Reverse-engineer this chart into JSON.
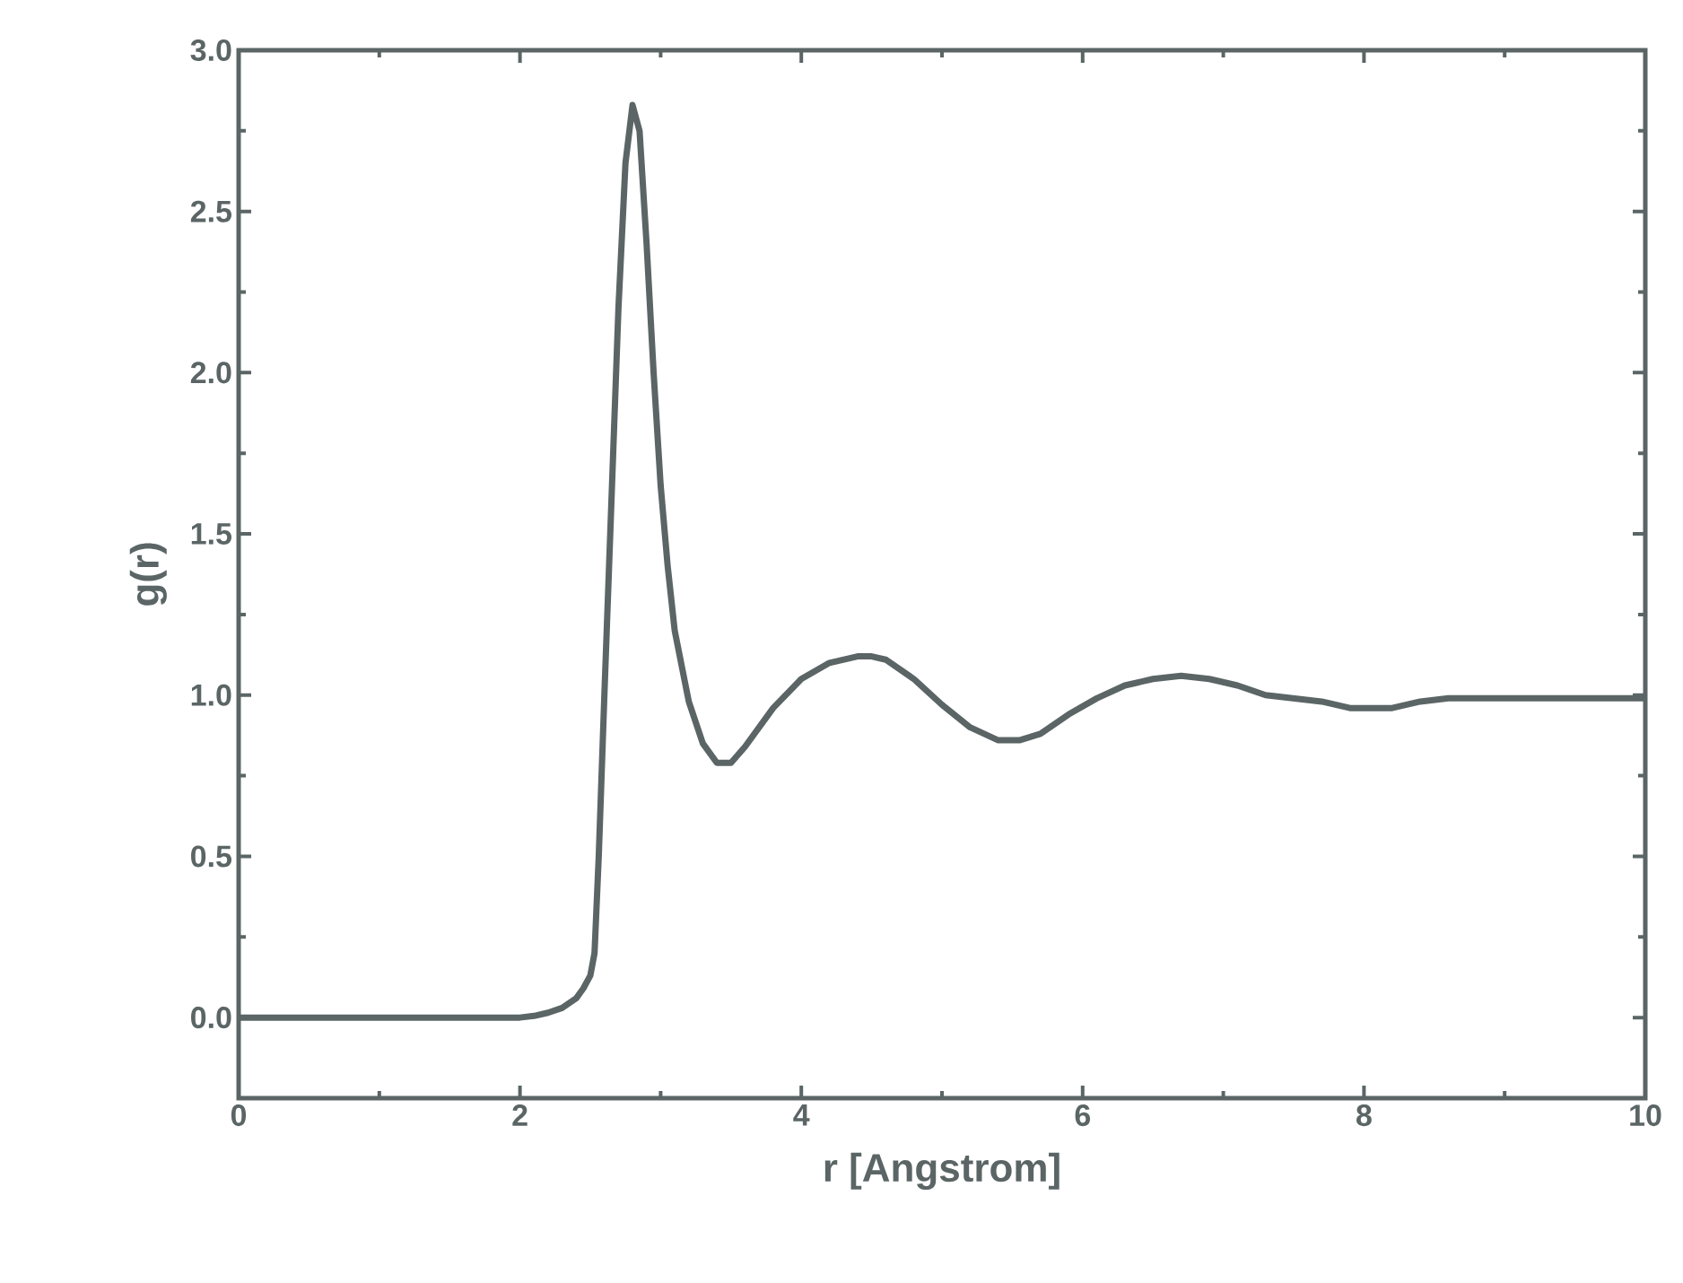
{
  "chart_data": {
    "type": "line",
    "xlabel": "r [Angstrom]",
    "ylabel": "g(r)",
    "x": [
      0,
      0.5,
      1,
      1.5,
      2,
      2.1,
      2.2,
      2.3,
      2.4,
      2.45,
      2.5,
      2.53,
      2.56,
      2.6,
      2.65,
      2.7,
      2.75,
      2.8,
      2.85,
      2.9,
      2.95,
      3.0,
      3.05,
      3.1,
      3.2,
      3.3,
      3.4,
      3.5,
      3.6,
      3.8,
      4.0,
      4.2,
      4.4,
      4.5,
      4.6,
      4.8,
      5.0,
      5.2,
      5.4,
      5.55,
      5.7,
      5.9,
      6.1,
      6.3,
      6.5,
      6.7,
      6.9,
      7.1,
      7.3,
      7.5,
      7.7,
      7.9,
      8.0,
      8.2,
      8.4,
      8.6,
      8.8,
      9.0,
      9.5,
      10
    ],
    "series": [
      {
        "color": "#5b6565",
        "values": [
          0,
          0,
          0,
          0,
          0,
          0.005,
          0.015,
          0.03,
          0.06,
          0.09,
          0.13,
          0.2,
          0.5,
          1.0,
          1.6,
          2.2,
          2.65,
          2.83,
          2.75,
          2.4,
          2.0,
          1.65,
          1.4,
          1.2,
          0.98,
          0.85,
          0.79,
          0.79,
          0.84,
          0.96,
          1.05,
          1.1,
          1.12,
          1.12,
          1.11,
          1.05,
          0.97,
          0.9,
          0.86,
          0.86,
          0.88,
          0.94,
          0.99,
          1.03,
          1.05,
          1.06,
          1.05,
          1.03,
          1.0,
          0.99,
          0.98,
          0.96,
          0.96,
          0.96,
          0.98,
          0.99,
          0.99,
          0.99,
          0.99,
          0.99
        ]
      }
    ],
    "xlim": [
      0,
      10
    ],
    "ylim": [
      -0.25,
      3.0
    ],
    "xticks": [
      0,
      2,
      4,
      6,
      8,
      10
    ],
    "yticks": [
      {
        "value": 0,
        "label": "0.0"
      },
      0.5,
      {
        "value": 1,
        "label": "1.0"
      },
      1.5,
      {
        "value": 2,
        "label": "2.0"
      },
      2.5,
      {
        "value": 3,
        "label": "3.0"
      }
    ],
    "marker": "none",
    "line_style": "solid"
  }
}
